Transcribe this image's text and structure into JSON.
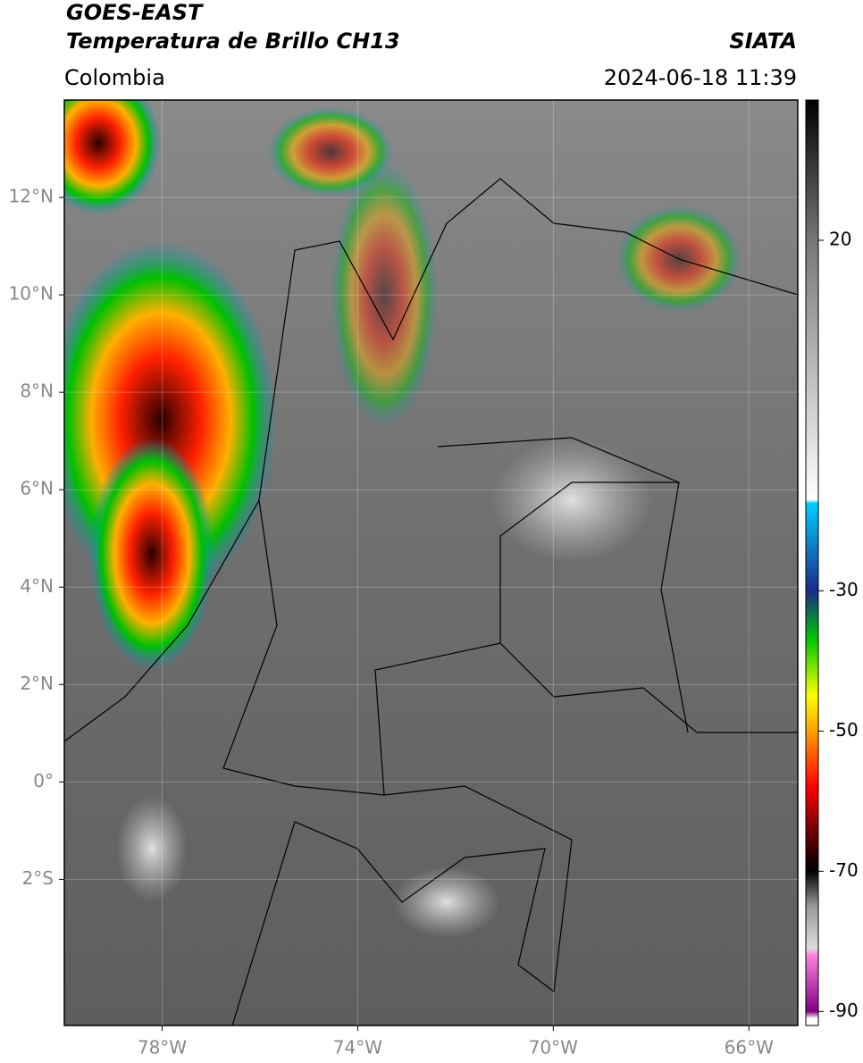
{
  "header": {
    "title": "GOES-EAST",
    "subtitle": "Temperatura de Brillo CH13",
    "source": "SIATA",
    "region": "Colombia",
    "timestamp": "2024-06-18 11:39"
  },
  "map": {
    "xlim": [
      -80,
      -65
    ],
    "ylim": [
      -5,
      14
    ],
    "lat_ticks": [
      {
        "value": 12,
        "label": "12°N"
      },
      {
        "value": 10,
        "label": "10°N"
      },
      {
        "value": 8,
        "label": "8°N"
      },
      {
        "value": 6,
        "label": "6°N"
      },
      {
        "value": 4,
        "label": "4°N"
      },
      {
        "value": 2,
        "label": "2°N"
      },
      {
        "value": 0,
        "label": "0°"
      },
      {
        "value": -2,
        "label": "2°S"
      }
    ],
    "lon_ticks": [
      {
        "value": -78,
        "label": "78°W"
      },
      {
        "value": -74,
        "label": "74°W"
      },
      {
        "value": -70,
        "label": "70°W"
      },
      {
        "value": -66,
        "label": "66°W"
      }
    ]
  },
  "colorbar": {
    "lim": [
      -92,
      40
    ],
    "ticks": [
      20,
      -30,
      -50,
      -70,
      -90
    ],
    "stops": [
      {
        "value": 40,
        "color": "#000000"
      },
      {
        "value": 20,
        "color": "#777777"
      },
      {
        "value": -17,
        "color": "#ffffff"
      },
      {
        "value": -17.5,
        "color": "#00d0ff"
      },
      {
        "value": -30,
        "color": "#1a2a8a"
      },
      {
        "value": -37,
        "color": "#00c800"
      },
      {
        "value": -45,
        "color": "#ffff00"
      },
      {
        "value": -50,
        "color": "#ffa000"
      },
      {
        "value": -58,
        "color": "#ff0000"
      },
      {
        "value": -65,
        "color": "#600000"
      },
      {
        "value": -70,
        "color": "#000000"
      },
      {
        "value": -75,
        "color": "#999999"
      },
      {
        "value": -81,
        "color": "#dddddd"
      },
      {
        "value": -82,
        "color": "#ff80e0"
      },
      {
        "value": -90,
        "color": "#800080"
      },
      {
        "value": -91,
        "color": "#ffffff"
      }
    ]
  }
}
